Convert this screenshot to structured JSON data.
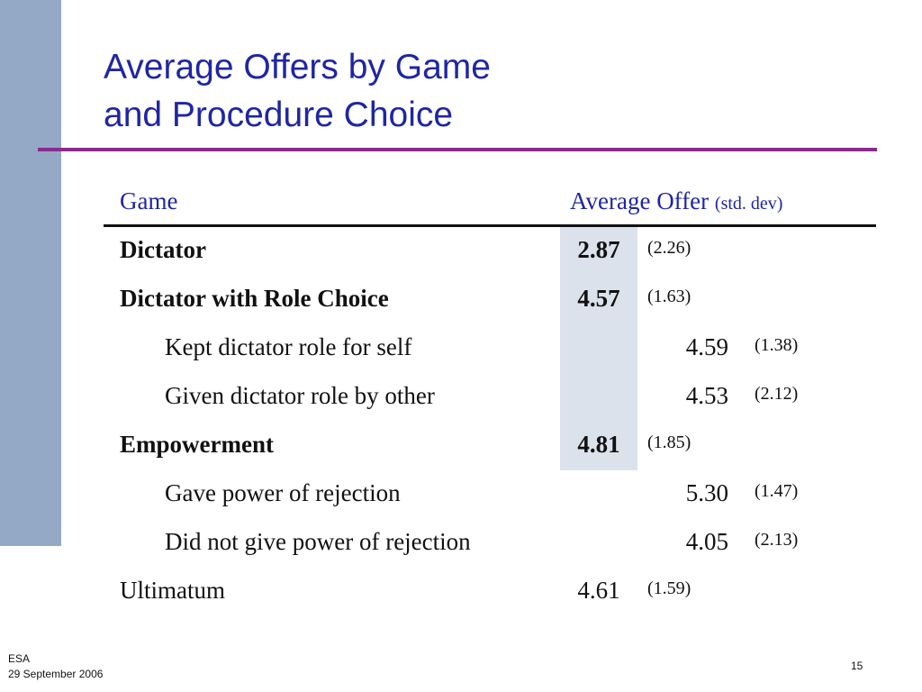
{
  "slide": {
    "title_line1": "Average Offers by Game",
    "title_line2": "and Procedure Choice"
  },
  "table": {
    "header": {
      "game": "Game",
      "average_offer": "Average Offer",
      "std_dev": "(std. dev)"
    },
    "rows": [
      {
        "label": "Dictator",
        "avg": "2.87",
        "sd": "(2.26)"
      },
      {
        "label": "Dictator with Role Choice",
        "avg": "4.57",
        "sd": "(1.63)"
      },
      {
        "label": "Kept dictator role for self",
        "avg": "4.59",
        "sd": "(1.38)"
      },
      {
        "label": "Given dictator role by other",
        "avg": "4.53",
        "sd": "(2.12)"
      },
      {
        "label": "Empowerment",
        "avg": "4.81",
        "sd": "(1.85)"
      },
      {
        "label": "Gave power of rejection",
        "avg": "5.30",
        "sd": "(1.47)"
      },
      {
        "label": "Did not give power of rejection",
        "avg": "4.05",
        "sd": "(2.13)"
      },
      {
        "label": "Ultimatum",
        "avg": "4.61",
        "sd": "(1.59)"
      }
    ]
  },
  "footer": {
    "org": "ESA",
    "date": "29 September 2006",
    "page_number": "15"
  },
  "colors": {
    "title": "#1f26a3",
    "rule": "#8a2b8e",
    "sidebar": "#94a9c6",
    "highlight": "#dbe2ec"
  }
}
